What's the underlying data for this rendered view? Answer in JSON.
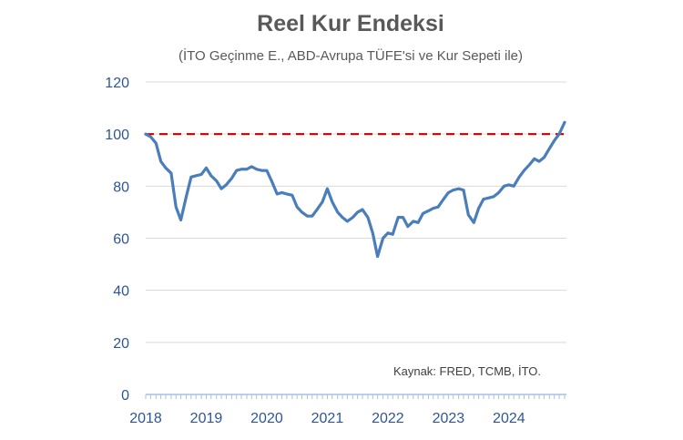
{
  "chart_data": {
    "type": "line",
    "title": "Reel Kur Endeksi",
    "subtitle": "(İTO Geçinme E., ABD-Avrupa TÜFE'si ve Kur Sepeti ile)",
    "source": "Kaynak: FRED, TCMB, İTO.",
    "xlabel": "",
    "ylabel": "",
    "ylim": [
      0,
      120
    ],
    "yticks": [
      "0",
      "20",
      "40",
      "60",
      "80",
      "100",
      "120"
    ],
    "xtick_labels": [
      "2018",
      "2019",
      "2020",
      "2021",
      "2022",
      "2023",
      "2024"
    ],
    "xlim": [
      2018.0,
      2024.95
    ],
    "reference_line": {
      "value": 100,
      "color": "#c00000",
      "style": "dashed"
    },
    "series": [
      {
        "name": "Reel Kur Endeksi",
        "color": "#4a7ebb",
        "x": [
          2018.0,
          2018.08,
          2018.17,
          2018.25,
          2018.33,
          2018.42,
          2018.5,
          2018.58,
          2018.67,
          2018.75,
          2018.83,
          2018.92,
          2019.0,
          2019.08,
          2019.17,
          2019.25,
          2019.33,
          2019.42,
          2019.5,
          2019.58,
          2019.67,
          2019.75,
          2019.83,
          2019.92,
          2020.0,
          2020.08,
          2020.17,
          2020.25,
          2020.33,
          2020.42,
          2020.5,
          2020.58,
          2020.67,
          2020.75,
          2020.83,
          2020.92,
          2021.0,
          2021.08,
          2021.17,
          2021.25,
          2021.33,
          2021.42,
          2021.5,
          2021.58,
          2021.67,
          2021.75,
          2021.83,
          2021.92,
          2022.0,
          2022.08,
          2022.17,
          2022.25,
          2022.33,
          2022.42,
          2022.5,
          2022.58,
          2022.67,
          2022.75,
          2022.83,
          2022.92,
          2023.0,
          2023.08,
          2023.17,
          2023.25,
          2023.33,
          2023.42,
          2023.5,
          2023.58,
          2023.67,
          2023.75,
          2023.83,
          2023.92,
          2024.0,
          2024.08,
          2024.17,
          2024.25,
          2024.33,
          2024.42,
          2024.5,
          2024.58,
          2024.67,
          2024.75,
          2024.83,
          2024.92
        ],
        "values": [
          100,
          99,
          96.5,
          89.5,
          87,
          85,
          72,
          67,
          76,
          83.5,
          84,
          84.5,
          87,
          84,
          82,
          79,
          80.5,
          83,
          86,
          86.5,
          86.5,
          87.5,
          86.5,
          86,
          86,
          82,
          77,
          77.5,
          77,
          76.5,
          72,
          70,
          68.5,
          68.5,
          71,
          74,
          79,
          74,
          70,
          68,
          66.5,
          68,
          70,
          71,
          68,
          62,
          53,
          60,
          62,
          61.5,
          68,
          68,
          64.5,
          66.5,
          66,
          69.5,
          70.5,
          71.5,
          72,
          75,
          77.5,
          78.5,
          79,
          78.5,
          69,
          66,
          71.5,
          75,
          75.5,
          76,
          77.5,
          80,
          80.5,
          80,
          83.5,
          86,
          88,
          90.5,
          89.5,
          91,
          94.5,
          97.5,
          100,
          104.5
        ]
      }
    ]
  }
}
